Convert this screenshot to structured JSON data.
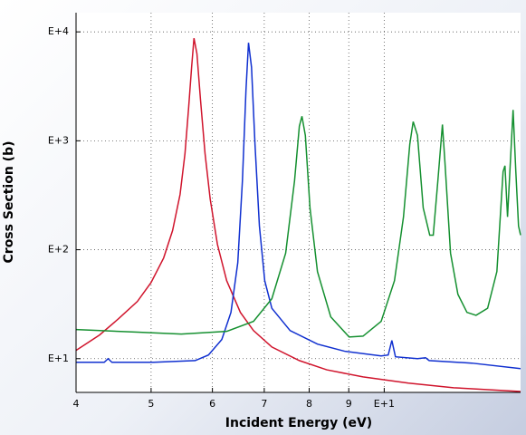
{
  "chart_data": {
    "type": "line",
    "x_label": "Incident Energy (eV)",
    "y_label": "Cross Section (b)",
    "xscale": "log",
    "yscale": "log",
    "grid": true,
    "xlim": [
      4,
      15
    ],
    "ylim": [
      4.9,
      15000
    ],
    "xticks": [
      4,
      5,
      6,
      7,
      8,
      9,
      {
        "value": 10,
        "label": "E+1"
      }
    ],
    "yticks": [
      {
        "value": 10,
        "label": "E+1"
      },
      {
        "value": 100,
        "label": "E+2"
      },
      {
        "value": 1000,
        "label": "E+3"
      },
      {
        "value": 10000,
        "label": "E+4"
      }
    ],
    "series": [
      {
        "color": "#d0142c",
        "x": [
          4.0,
          4.29,
          4.54,
          4.8,
          5.0,
          5.19,
          5.33,
          5.45,
          5.53,
          5.59,
          5.64,
          5.68,
          5.73,
          5.79,
          5.87,
          5.96,
          6.09,
          6.26,
          6.52,
          6.78,
          7.16,
          7.77,
          8.43,
          9.39,
          10.75,
          12.29,
          15.0
        ],
        "values": [
          11.9,
          16.5,
          23.3,
          33.5,
          50,
          84,
          150,
          322,
          764,
          2000,
          4730,
          8750,
          6310,
          2420,
          764,
          293,
          112,
          52,
          26.6,
          18.1,
          12.8,
          9.6,
          7.9,
          6.8,
          5.96,
          5.41,
          5.0
        ]
      },
      {
        "color": "#1030d0",
        "x": [
          4.0,
          4.35,
          4.4,
          4.45,
          5.04,
          5.7,
          5.93,
          6.17,
          6.34,
          6.47,
          6.56,
          6.63,
          6.68,
          6.74,
          6.81,
          6.9,
          7.01,
          7.16,
          7.56,
          8.2,
          8.89,
          9.91,
          10.12,
          10.23,
          10.34,
          11.04,
          11.31,
          11.43,
          12.98,
          15.0
        ],
        "values": [
          9.26,
          9.26,
          10,
          9.26,
          9.26,
          9.6,
          10.8,
          15,
          26.6,
          76,
          430,
          2930,
          7940,
          4730,
          927,
          165,
          52,
          29,
          18.1,
          13.6,
          11.7,
          10.6,
          10.8,
          14.7,
          10.4,
          10,
          10.2,
          9.6,
          9.1,
          8.1
        ]
      },
      {
        "color": "#159030",
        "x": [
          4.0,
          4.8,
          5.47,
          6.26,
          6.78,
          7.16,
          7.46,
          7.66,
          7.77,
          7.83,
          7.91,
          8.02,
          8.2,
          8.53,
          9.01,
          9.39,
          9.91,
          10.31,
          10.59,
          10.79,
          10.9,
          11.04,
          11.23,
          11.45,
          11.57,
          11.73,
          11.89,
          11.98,
          12.18,
          12.45,
          12.79,
          13.14,
          13.6,
          13.98,
          14.24,
          14.32,
          14.43,
          14.55,
          14.67,
          14.79,
          14.91,
          15.0
        ],
        "values": [
          18.5,
          17.5,
          16.8,
          17.8,
          22,
          35.5,
          93,
          430,
          1360,
          1680,
          1120,
          242,
          63,
          24.2,
          15.8,
          16.1,
          22,
          52,
          200,
          927,
          1500,
          1120,
          242,
          136,
          136,
          430,
          1410,
          630,
          93,
          39,
          26.6,
          25,
          29,
          63,
          521,
          590,
          200,
          630,
          1920,
          521,
          165,
          136
        ]
      }
    ]
  }
}
